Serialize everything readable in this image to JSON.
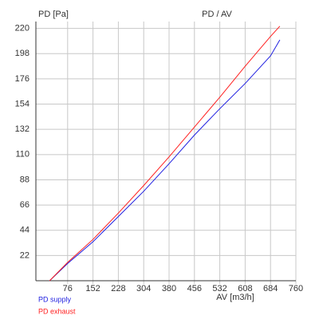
{
  "chart_data": {
    "type": "line",
    "title": "PD / AV",
    "y_label": "PD [Pa]",
    "x_label": "AV [m3/h]",
    "x": [
      22,
      76,
      152,
      228,
      304,
      380,
      456,
      532,
      608,
      684,
      712
    ],
    "series": [
      {
        "name": "PD supply",
        "color": "#2020e0",
        "values": [
          0,
          15,
          34,
          56,
          78,
          102,
          127,
          150,
          172,
          196,
          210
        ]
      },
      {
        "name": "PD exhaust",
        "color": "#ff2020",
        "values": [
          0,
          16,
          36,
          59,
          83,
          108,
          134,
          160,
          187,
          213,
          222
        ]
      }
    ],
    "xlim": [
      0,
      760
    ],
    "ylim": [
      0,
      226
    ],
    "xticks": [
      76,
      152,
      228,
      304,
      380,
      456,
      532,
      608,
      684,
      760
    ],
    "yticks": [
      22,
      44,
      66,
      88,
      110,
      132,
      154,
      176,
      198,
      220
    ],
    "grid": true
  }
}
